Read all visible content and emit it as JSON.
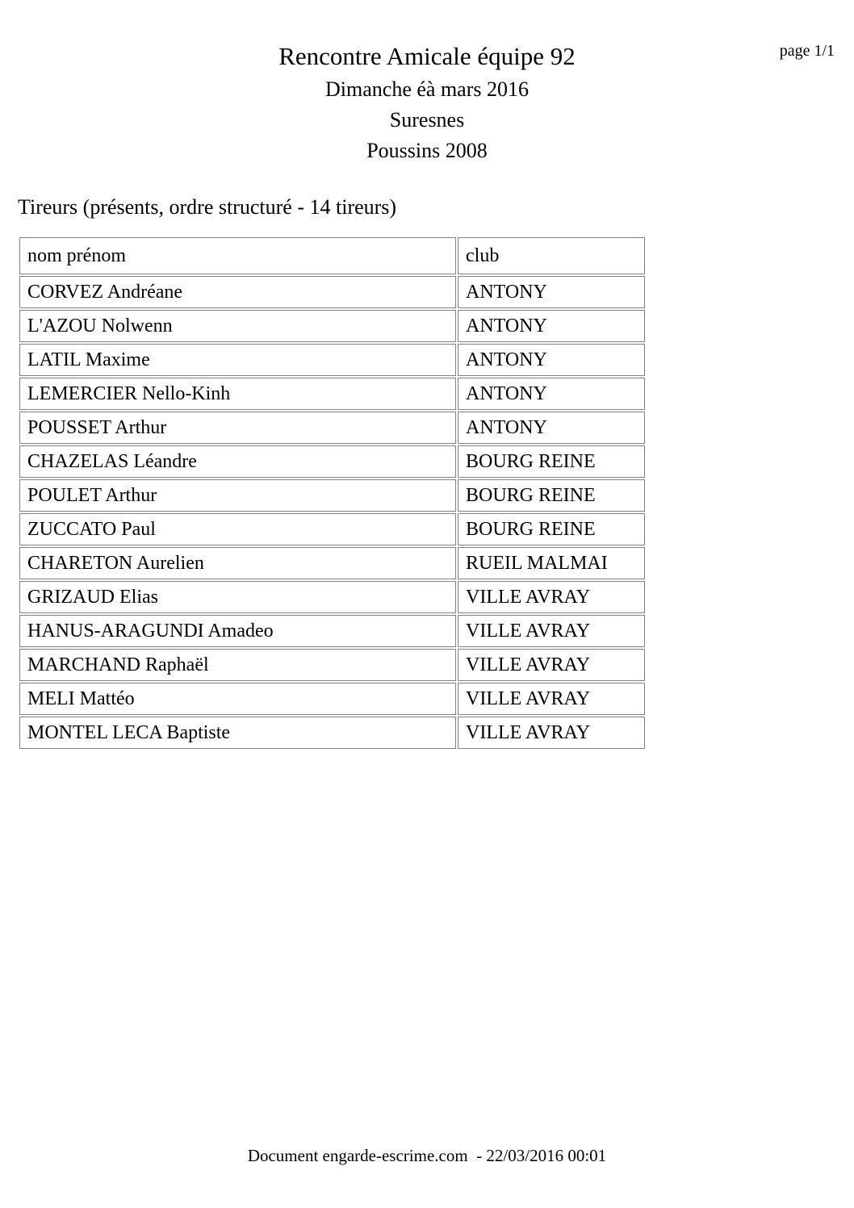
{
  "page": {
    "page_indicator": "page 1/1",
    "title": "Rencontre Amicale équipe 92",
    "subtitle_lines": [
      "Dimanche éà mars 2016",
      "Suresnes",
      "Poussins 2008"
    ],
    "section_heading": "Tireurs (présents, ordre structuré - 14 tireurs)",
    "footer": "Document engarde-escrime.com  - 22/03/2016 00:01"
  },
  "table": {
    "headers": [
      "nom prénom",
      "club"
    ],
    "rows": [
      [
        "CORVEZ Andréane",
        "ANTONY"
      ],
      [
        "L'AZOU Nolwenn",
        "ANTONY"
      ],
      [
        "LATIL Maxime",
        "ANTONY"
      ],
      [
        "LEMERCIER Nello-Kinh",
        "ANTONY"
      ],
      [
        "POUSSET Arthur",
        "ANTONY"
      ],
      [
        "CHAZELAS Léandre",
        "BOURG REINE"
      ],
      [
        "POULET Arthur",
        "BOURG REINE"
      ],
      [
        "ZUCCATO Paul",
        "BOURG REINE"
      ],
      [
        "CHARETON Aurelien",
        "RUEIL MALMAI"
      ],
      [
        "GRIZAUD Elias",
        "VILLE AVRAY"
      ],
      [
        "HANUS-ARAGUNDI Amadeo",
        "VILLE AVRAY"
      ],
      [
        "MARCHAND Raphaël",
        "VILLE AVRAY"
      ],
      [
        "MELI Mattéo",
        "VILLE AVRAY"
      ],
      [
        "MONTEL LECA Baptiste",
        "VILLE AVRAY"
      ]
    ],
    "border_color": "#7f7f7f",
    "text_color": "#000000",
    "background_color": "#ffffff"
  }
}
